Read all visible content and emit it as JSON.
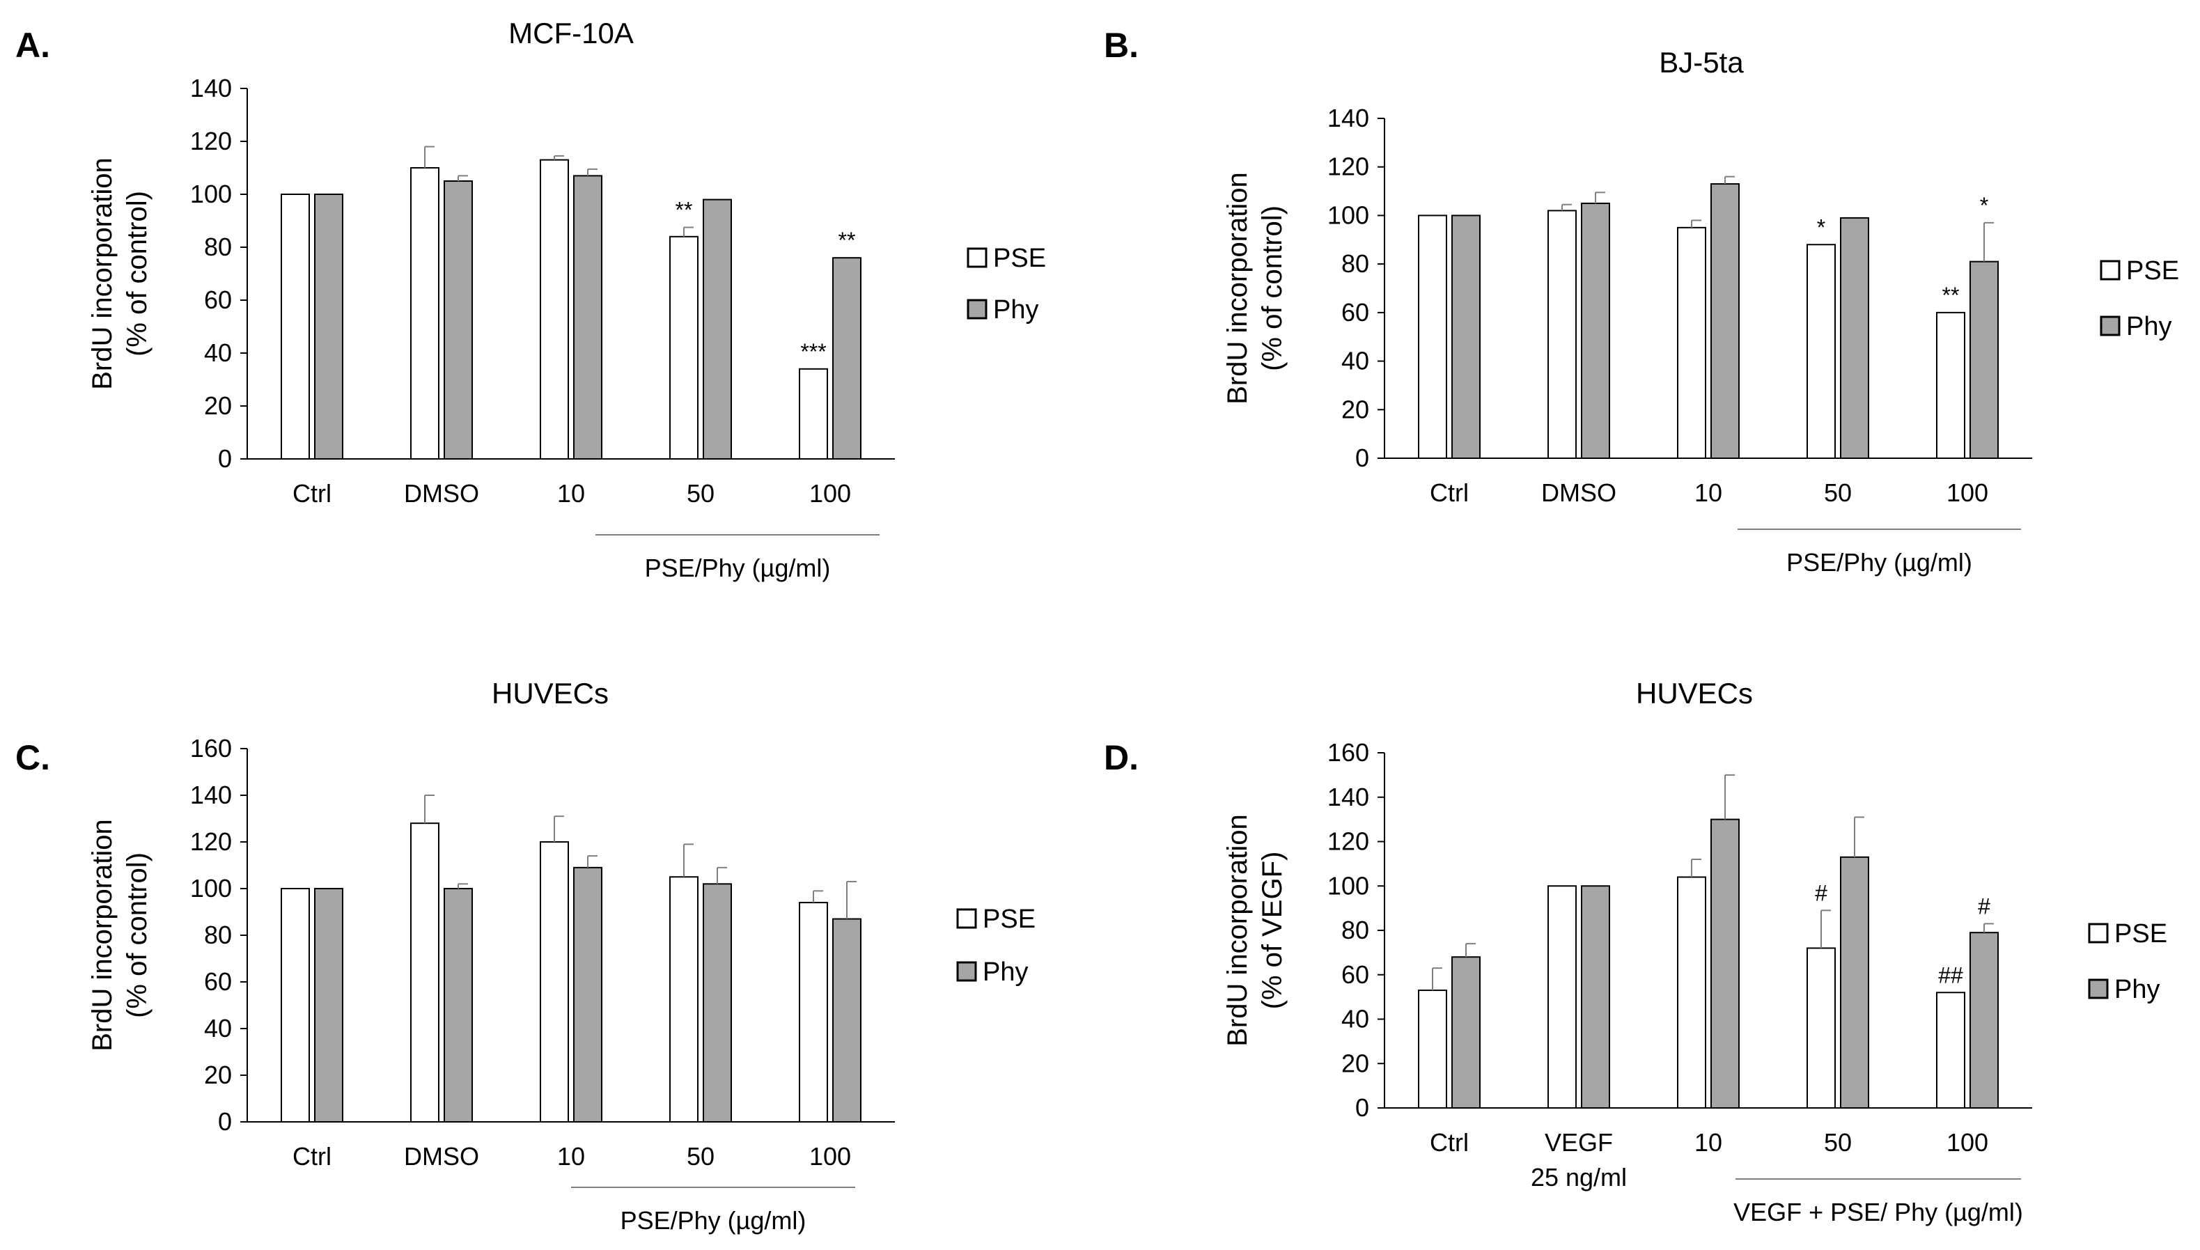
{
  "colors": {
    "pse_fill": "#ffffff",
    "phy_fill": "#a6a6a6",
    "stroke": "#000000",
    "errorbar": "#7f7f7f",
    "axis": "#000000",
    "bracket": "#7f7f7f"
  },
  "chart_data": [
    {
      "panel_label": "A.",
      "type": "bar",
      "title": "MCF-10A",
      "ylabel_line1": "BrdU incorporation",
      "ylabel_line2": "(% of control)",
      "ylim": [
        0,
        140
      ],
      "yticks": [
        0,
        20,
        40,
        60,
        80,
        100,
        120,
        140
      ],
      "categories": [
        "Ctrl",
        "DMSO",
        "10",
        "50",
        "100"
      ],
      "category_sublabels": [
        "",
        "",
        "",
        "",
        ""
      ],
      "bracket_label": "PSE/Phy (µg/ml)",
      "series": [
        {
          "name": "PSE",
          "values": [
            100,
            110,
            113,
            84,
            34
          ],
          "errors": [
            0,
            8,
            1.5,
            3.5,
            0
          ],
          "annotations": [
            "",
            "",
            "",
            "**",
            "***"
          ]
        },
        {
          "name": "Phy",
          "values": [
            100,
            105,
            107,
            98,
            76
          ],
          "errors": [
            0,
            2,
            2.5,
            0,
            0
          ],
          "annotations": [
            "",
            "",
            "",
            "",
            "**"
          ]
        }
      ],
      "legend": {
        "placement": "right",
        "items": [
          "PSE",
          "Phy"
        ]
      }
    },
    {
      "panel_label": "B.",
      "type": "bar",
      "title": "BJ-5ta",
      "ylabel_line1": "BrdU incorporation",
      "ylabel_line2": "(% of control)",
      "ylim": [
        0,
        140
      ],
      "yticks": [
        0,
        20,
        40,
        60,
        80,
        100,
        120,
        140
      ],
      "categories": [
        "Ctrl",
        "DMSO",
        "10",
        "50",
        "100"
      ],
      "category_sublabels": [
        "",
        "",
        "",
        "",
        ""
      ],
      "bracket_label": "PSE/Phy (µg/ml)",
      "series": [
        {
          "name": "PSE",
          "values": [
            100,
            102,
            95,
            88,
            60
          ],
          "errors": [
            0,
            2.5,
            3,
            0,
            0
          ],
          "annotations": [
            "",
            "",
            "",
            "*",
            "**"
          ]
        },
        {
          "name": "Phy",
          "values": [
            100,
            105,
            113,
            99,
            81
          ],
          "errors": [
            0,
            4.5,
            3,
            0,
            16
          ],
          "annotations": [
            "",
            "",
            "",
            "",
            "*"
          ]
        }
      ],
      "legend": {
        "placement": "right",
        "items": [
          "PSE",
          "Phy"
        ]
      }
    },
    {
      "panel_label": "C.",
      "type": "bar",
      "title": "HUVECs",
      "ylabel_line1": "BrdU incorporation",
      "ylabel_line2": "(% of control)",
      "ylim": [
        0,
        160
      ],
      "yticks": [
        0,
        20,
        40,
        60,
        80,
        100,
        120,
        140,
        160
      ],
      "categories": [
        "Ctrl",
        "DMSO",
        "10",
        "50",
        "100"
      ],
      "category_sublabels": [
        "",
        "",
        "",
        "",
        ""
      ],
      "bracket_label": "PSE/Phy (µg/ml)",
      "series": [
        {
          "name": "PSE",
          "values": [
            100,
            128,
            120,
            105,
            94
          ],
          "errors": [
            0,
            12,
            11,
            14,
            5
          ],
          "annotations": [
            "",
            "",
            "",
            "",
            ""
          ]
        },
        {
          "name": "Phy",
          "values": [
            100,
            100,
            109,
            102,
            87
          ],
          "errors": [
            0,
            2,
            5,
            7,
            16
          ],
          "annotations": [
            "",
            "",
            "",
            "",
            ""
          ]
        }
      ],
      "legend": {
        "placement": "right",
        "items": [
          "PSE",
          "Phy"
        ]
      }
    },
    {
      "panel_label": "D.",
      "type": "bar",
      "title": "HUVECs",
      "ylabel_line1": "BrdU incorporation",
      "ylabel_line2": "(% of VEGF)",
      "ylim": [
        0,
        160
      ],
      "yticks": [
        0,
        20,
        40,
        60,
        80,
        100,
        120,
        140,
        160
      ],
      "categories": [
        "Ctrl",
        "VEGF",
        "10",
        "50",
        "100"
      ],
      "category_sublabels": [
        "",
        "25 ng/ml",
        "",
        "",
        ""
      ],
      "bracket_label": "VEGF + PSE/ Phy (µg/ml)",
      "series": [
        {
          "name": "PSE",
          "values": [
            53,
            100,
            104,
            72,
            52
          ],
          "errors": [
            10,
            0,
            8,
            17,
            0
          ],
          "annotations": [
            "",
            "",
            "",
            "#",
            "##"
          ]
        },
        {
          "name": "Phy",
          "values": [
            68,
            100,
            130,
            113,
            79
          ],
          "errors": [
            6,
            0,
            20,
            18,
            4
          ],
          "annotations": [
            "",
            "",
            "",
            "",
            "#"
          ]
        }
      ],
      "legend": {
        "placement": "right",
        "items": [
          "PSE",
          "Phy"
        ]
      }
    }
  ]
}
